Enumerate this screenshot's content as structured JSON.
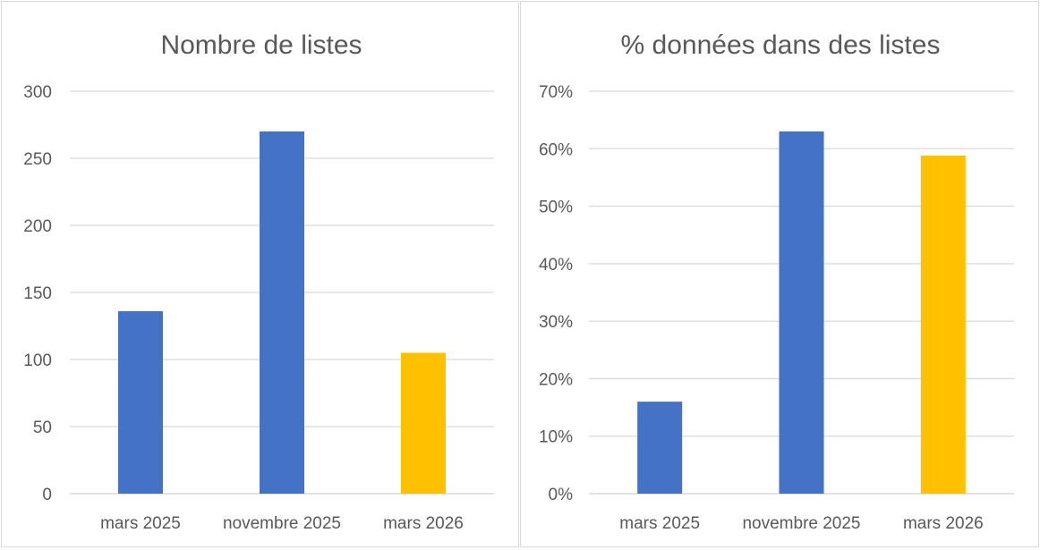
{
  "chart_data": [
    {
      "type": "bar",
      "title": "Nombre de listes",
      "xlabel": "",
      "ylabel": "",
      "categories": [
        "mars 2025",
        "novembre 2025",
        "mars 2026"
      ],
      "values": [
        136,
        270,
        105
      ],
      "bar_colors": [
        "#4472C4",
        "#4472C4",
        "#FFC000"
      ],
      "ylim": [
        0,
        300
      ],
      "yticks": [
        0,
        50,
        100,
        150,
        200,
        250,
        300
      ],
      "ytick_labels": [
        "0",
        "50",
        "100",
        "150",
        "200",
        "250",
        "300"
      ],
      "grid": true,
      "legend": "none"
    },
    {
      "type": "bar",
      "title": "% données dans des listes",
      "xlabel": "",
      "ylabel": "",
      "categories": [
        "mars 2025",
        "novembre 2025",
        "mars 2026"
      ],
      "values": [
        16,
        63,
        58.8
      ],
      "bar_colors": [
        "#4472C4",
        "#4472C4",
        "#FFC000"
      ],
      "ylim": [
        0,
        70
      ],
      "yticks": [
        0,
        10,
        20,
        30,
        40,
        50,
        60,
        70
      ],
      "ytick_labels": [
        "0%",
        "10%",
        "20%",
        "30%",
        "40%",
        "50%",
        "60%",
        "70%"
      ],
      "grid": true,
      "legend": "none"
    }
  ]
}
